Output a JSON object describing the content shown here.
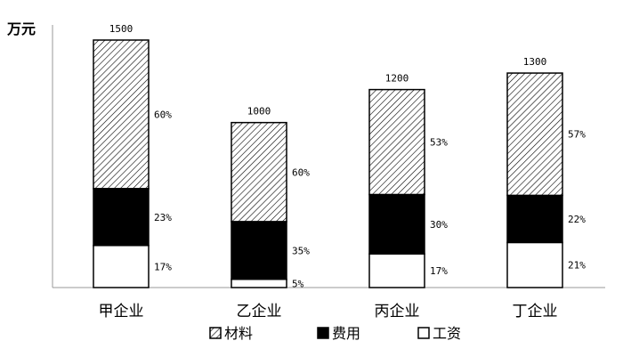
{
  "chart_data": {
    "type": "bar",
    "stacked": true,
    "unit_label": "万元",
    "categories": [
      "甲企业",
      "乙企业",
      "丙企业",
      "丁企业"
    ],
    "totals": [
      1500,
      1000,
      1200,
      1300
    ],
    "total_labels": [
      "1500",
      "1000",
      "1200",
      "1300"
    ],
    "series": [
      {
        "name": "工资",
        "fill": "white",
        "percents": [
          17,
          5,
          17,
          21
        ],
        "labels": [
          "17%",
          "5%",
          "17%",
          "21%"
        ]
      },
      {
        "name": "费用",
        "fill": "black",
        "percents": [
          23,
          35,
          30,
          22
        ],
        "labels": [
          "23%",
          "35%",
          "30%",
          "22%"
        ]
      },
      {
        "name": "材料",
        "fill": "hatched",
        "percents": [
          60,
          60,
          53,
          57
        ],
        "labels": [
          "60%",
          "60%",
          "53%",
          "57%"
        ]
      }
    ],
    "legend": {
      "position": "bottom",
      "order": [
        "材料",
        "费用",
        "工资"
      ]
    },
    "colors": {
      "stroke": "#000000",
      "hatch": "#000000",
      "background": "#ffffff"
    }
  }
}
